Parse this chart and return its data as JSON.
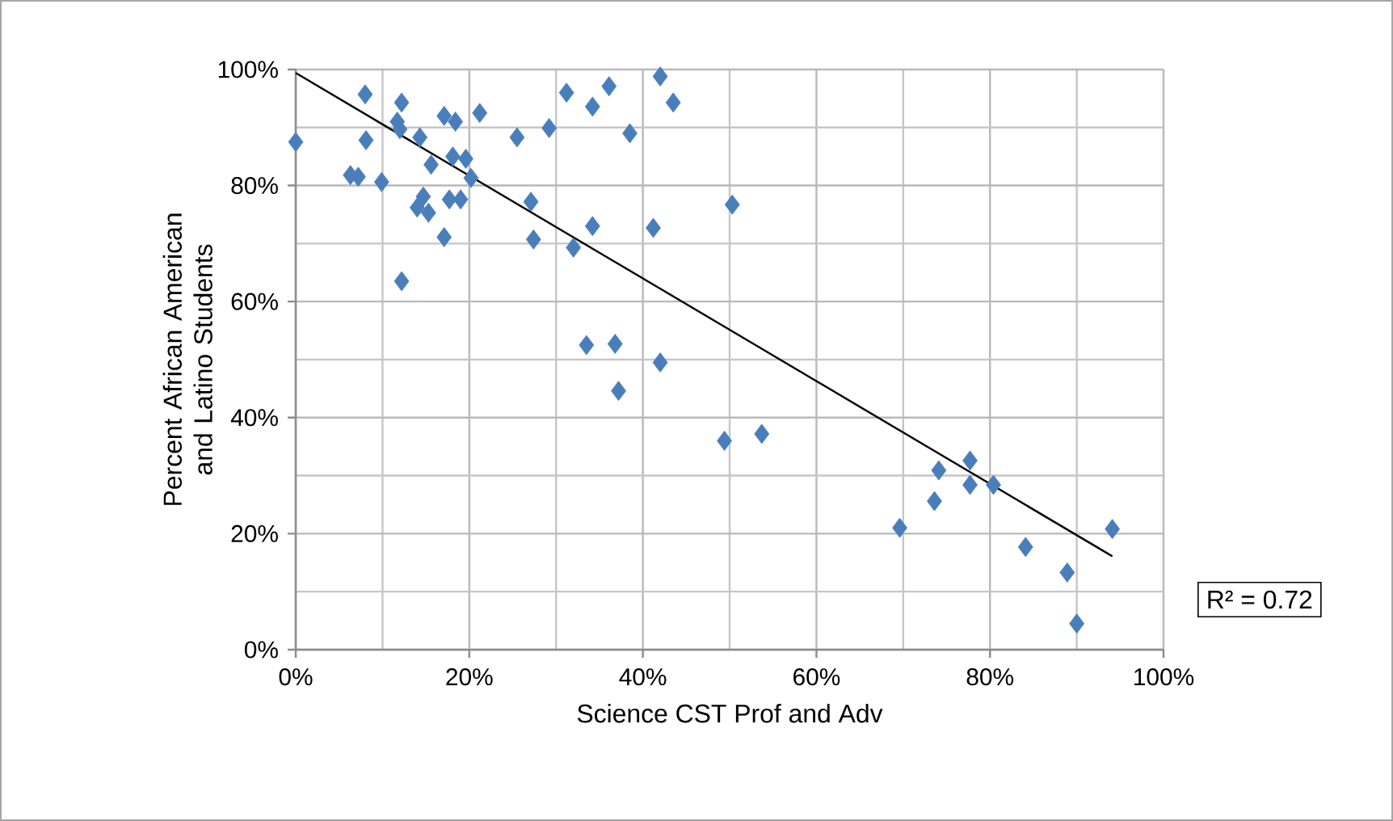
{
  "chart_data": {
    "type": "scatter",
    "xlabel": "Science CST Prof and Adv",
    "ylabel": "Percent African American and Latino Students",
    "xlim": [
      0,
      100
    ],
    "ylim": [
      0,
      100
    ],
    "xticks": [
      {
        "value": 0,
        "label": "0%"
      },
      {
        "value": 20,
        "label": "20%"
      },
      {
        "value": 40,
        "label": "40%"
      },
      {
        "value": 60,
        "label": "60%"
      },
      {
        "value": 80,
        "label": "80%"
      },
      {
        "value": 100,
        "label": "100%"
      }
    ],
    "yticks": [
      {
        "value": 0,
        "label": "0%"
      },
      {
        "value": 20,
        "label": "20%"
      },
      {
        "value": 40,
        "label": "40%"
      },
      {
        "value": 60,
        "label": "60%"
      },
      {
        "value": 80,
        "label": "80%"
      },
      {
        "value": 100,
        "label": "100%"
      }
    ],
    "grid": true,
    "marker": "diamond",
    "annotations": [
      "R² = 0.72"
    ],
    "series": [
      {
        "color": "#4a7ebb",
        "x": [
          0,
          8.0,
          8.1,
          6.3,
          7.2,
          9.9,
          12.2,
          12.0,
          11.7,
          14.3,
          17.1,
          18.4,
          21.2,
          15.6,
          18.1,
          19.6,
          20.2,
          14.7,
          14.0,
          15.3,
          17.7,
          19.0,
          17.1,
          12.2,
          25.5,
          29.2,
          31.2,
          34.2,
          36.1,
          38.5,
          42.0,
          43.5,
          27.1,
          27.4,
          32.0,
          34.2,
          41.2,
          50.3,
          33.5,
          36.8,
          37.2,
          42.0,
          49.4,
          53.7,
          69.6,
          73.6,
          74.1,
          77.7,
          77.7,
          80.4,
          84.1,
          88.9,
          90.0,
          94.1
        ],
        "values": [
          87.5,
          95.7,
          87.8,
          81.8,
          81.5,
          80.6,
          94.3,
          89.7,
          91,
          88.3,
          92,
          91,
          92.5,
          83.6,
          85,
          84.6,
          81.3,
          78.1,
          76.2,
          75.3,
          77.6,
          77.6,
          71.1,
          63.5,
          88.3,
          89.9,
          96,
          93.6,
          97.1,
          89,
          98.8,
          94.3,
          77.2,
          70.7,
          69.3,
          73,
          72.7,
          76.7,
          52.5,
          52.7,
          44.6,
          49.5,
          36.0,
          37.2,
          21.0,
          25.6,
          30.9,
          32.6,
          28.4,
          28.4,
          17.7,
          13.3,
          4.5,
          20.8
        ]
      },
      {
        "type": "line",
        "marker": "none",
        "color": "#000000",
        "x": [
          0,
          94.1
        ],
        "values": [
          99.4,
          16.1
        ]
      }
    ]
  }
}
